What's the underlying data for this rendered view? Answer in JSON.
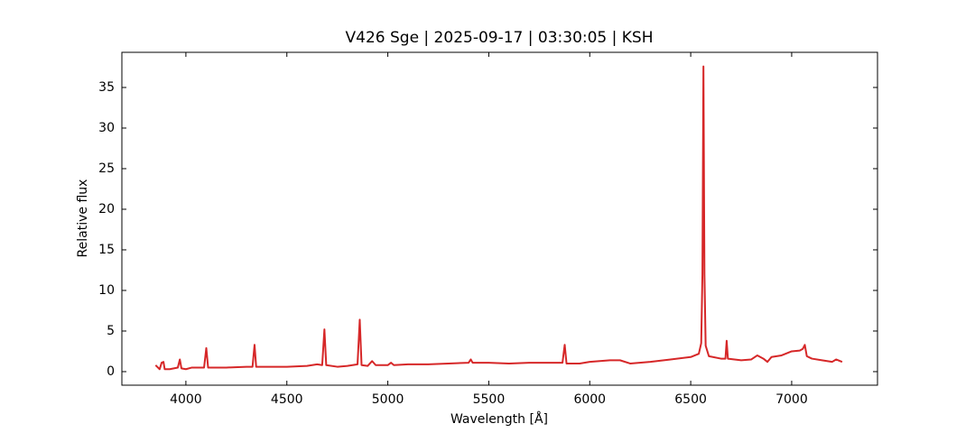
{
  "chart_data": {
    "type": "line",
    "title": "V426 Sge | 2025-09-17 | 03:30:05 | KSH",
    "x_label": "Wavelength [Å]",
    "y_label": "Relative flux",
    "color": "#d62728",
    "xlim": [
      3683,
      7425
    ],
    "ylim": [
      -1.67,
      39.33
    ],
    "xticks": [
      4000,
      4500,
      5000,
      5500,
      6000,
      6500,
      7000
    ],
    "yticks": [
      0,
      5,
      10,
      15,
      20,
      25,
      30,
      35
    ],
    "x": [
      3850,
      3870,
      3880,
      3889,
      3895,
      3920,
      3960,
      3970,
      3978,
      4000,
      4030,
      4090,
      4101,
      4110,
      4200,
      4300,
      4330,
      4340,
      4348,
      4400,
      4500,
      4600,
      4650,
      4675,
      4686,
      4695,
      4750,
      4800,
      4850,
      4861,
      4870,
      4900,
      4922,
      4940,
      5000,
      5016,
      5030,
      5100,
      5200,
      5300,
      5400,
      5411,
      5420,
      5500,
      5600,
      5700,
      5800,
      5865,
      5876,
      5885,
      5950,
      6000,
      6100,
      6150,
      6200,
      6300,
      6400,
      6500,
      6540,
      6552,
      6558,
      6563,
      6568,
      6574,
      6590,
      6650,
      6672,
      6678,
      6684,
      6750,
      6800,
      6830,
      6860,
      6880,
      6900,
      6950,
      7000,
      7040,
      7055,
      7065,
      7075,
      7100,
      7150,
      7200,
      7220,
      7250
    ],
    "values": [
      0.8,
      0.3,
      1.1,
      1.2,
      0.3,
      0.3,
      0.5,
      1.5,
      0.4,
      0.3,
      0.5,
      0.5,
      2.9,
      0.5,
      0.5,
      0.6,
      0.6,
      3.3,
      0.6,
      0.6,
      0.6,
      0.7,
      0.9,
      0.8,
      5.2,
      0.8,
      0.6,
      0.7,
      0.9,
      6.4,
      0.8,
      0.7,
      1.3,
      0.8,
      0.8,
      1.1,
      0.8,
      0.9,
      0.9,
      1.0,
      1.1,
      1.5,
      1.1,
      1.1,
      1.0,
      1.1,
      1.1,
      1.1,
      3.3,
      1.0,
      1.0,
      1.2,
      1.4,
      1.4,
      1.0,
      1.2,
      1.5,
      1.8,
      2.2,
      3.5,
      12,
      37.6,
      12,
      3.2,
      1.9,
      1.6,
      1.6,
      3.8,
      1.6,
      1.4,
      1.5,
      2.0,
      1.6,
      1.2,
      1.8,
      2.0,
      2.5,
      2.6,
      2.8,
      3.3,
      1.9,
      1.6,
      1.4,
      1.2,
      1.5,
      1.2
    ]
  }
}
